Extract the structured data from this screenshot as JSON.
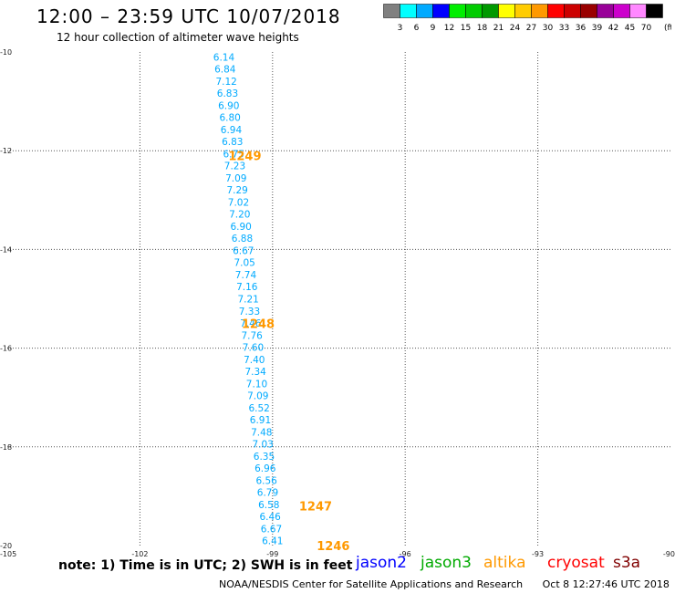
{
  "header": {
    "title": "12:00 – 23:59 UTC 10/07/2018",
    "subtitle": "12 hour collection of altimeter wave heights"
  },
  "legend": {
    "colors": [
      "#808080",
      "#00ffff",
      "#00aaff",
      "#0000ff",
      "#00ee00",
      "#00cc00",
      "#009900",
      "#ffff00",
      "#ffcc00",
      "#ff9900",
      "#ff0000",
      "#cc0000",
      "#990000",
      "#990099",
      "#cc00cc",
      "#ff88ff",
      "#000000"
    ],
    "labels": [
      "3",
      "6",
      "9",
      "12",
      "15",
      "18",
      "21",
      "24",
      "27",
      "30",
      "33",
      "36",
      "39",
      "42",
      "45",
      "70"
    ],
    "unit": "(ft)"
  },
  "chart_data": {
    "type": "scatter",
    "x_ticks": [
      "-105",
      "-102",
      "-99",
      "-96",
      "-93",
      "-90"
    ],
    "y_ticks": [
      "-10",
      "-12",
      "-14",
      "-16",
      "-18",
      "-20"
    ],
    "xlim": [
      -105,
      -90
    ],
    "ylim": [
      -20,
      -10
    ],
    "track_start": [
      -100.1,
      -10.1
    ],
    "track_end": [
      -99.0,
      -19.9
    ],
    "swh_values": [
      "6.14",
      "6.84",
      "7.12",
      "6.83",
      "6.90",
      "6.80",
      "6.94",
      "6.83",
      "6.75",
      "7.23",
      "7.09",
      "7.29",
      "7.02",
      "7.20",
      "6.90",
      "6.88",
      "6.67",
      "7.05",
      "7.74",
      "7.16",
      "7.21",
      "7.33",
      "7.46",
      "7.76",
      "7.60",
      "7.40",
      "7.34",
      "7.10",
      "7.09",
      "6.52",
      "6.91",
      "7.48",
      "7.03",
      "6.35",
      "6.96",
      "6.56",
      "6.79",
      "6.58",
      "6.46",
      "6.67",
      "6.41"
    ],
    "swh_color": "#00aaff",
    "time_labels": [
      {
        "text": "1249",
        "lon": -100.0,
        "lat": -12.1
      },
      {
        "text": "1248",
        "lon": -99.7,
        "lat": -15.5
      },
      {
        "text": "1247",
        "lon": -98.4,
        "lat": -19.2
      },
      {
        "text": "1246",
        "lon": -98.0,
        "lat": -20.0
      }
    ],
    "time_color": "#ff9900"
  },
  "notes": {
    "note": "note: 1) Time is in UTC; 2) SWH is in feet"
  },
  "satellites": [
    {
      "name": "jason2",
      "color": "#0000ff"
    },
    {
      "name": "jason3",
      "color": "#00aa00"
    },
    {
      "name": "altika",
      "color": "#ff9900"
    },
    {
      "name": "cryosat",
      "color": "#ff0000"
    },
    {
      "name": "s3a",
      "color": "#800000"
    }
  ],
  "footer": {
    "credit": "NOAA/NESDIS Center for Satellite Applications and Research",
    "timestamp": "Oct  8 12:27:46 UTC 2018"
  }
}
